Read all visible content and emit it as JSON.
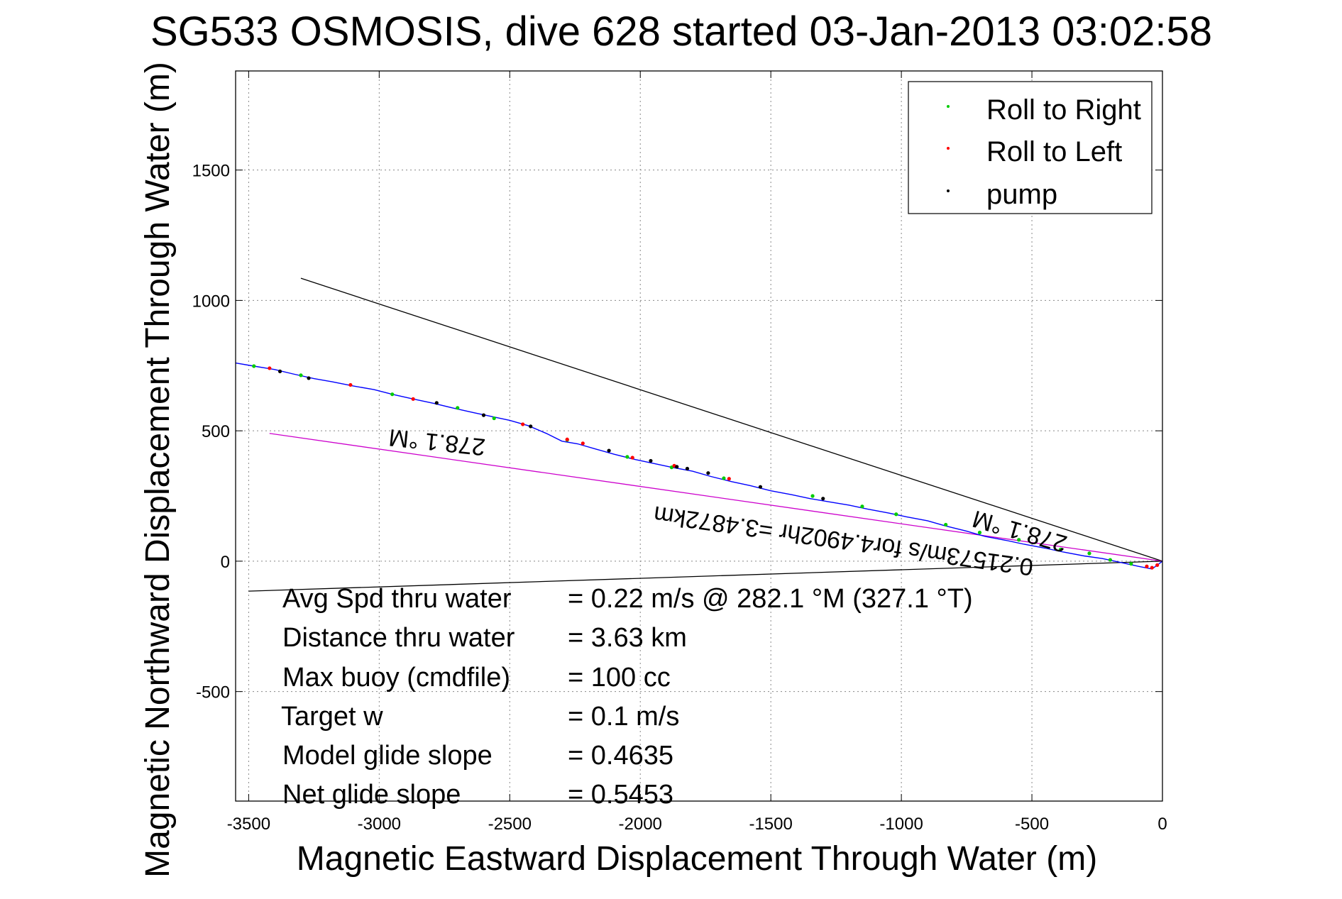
{
  "chart_data": {
    "type": "line",
    "title": "SG533 OSMOSIS, dive 628 started 03-Jan-2013 03:02:58",
    "xlabel": "Magnetic Eastward Displacement Through Water (m)",
    "ylabel": "Magnetic Northward Displacement Through Water (m)",
    "xlim": [
      -3550,
      0
    ],
    "ylim": [
      -920,
      1880
    ],
    "x_ticks": [
      -3500,
      -3000,
      -2500,
      -2000,
      -1500,
      -1000,
      -500,
      0
    ],
    "y_ticks": [
      -500,
      0,
      500,
      1000,
      1500
    ],
    "grid": true,
    "legend_position": "top-right",
    "legend": [
      {
        "label": "Roll to Right",
        "color": "#00cc00"
      },
      {
        "label": "Roll to Left",
        "color": "#ff0000"
      },
      {
        "label": "pump",
        "color": "#000000"
      }
    ],
    "track": {
      "name": "track",
      "color": "#0000ff",
      "x": [
        -3550,
        -3480,
        -3400,
        -3330,
        -3250,
        -3180,
        -3100,
        -3020,
        -2950,
        -2870,
        -2790,
        -2720,
        -2640,
        -2570,
        -2500,
        -2430,
        -2360,
        -2300,
        -2240,
        -2170,
        -2100,
        -2020,
        -1950,
        -1880,
        -1800,
        -1730,
        -1650,
        -1580,
        -1500,
        -1420,
        -1350,
        -1280,
        -1200,
        -1130,
        -1050,
        -980,
        -900,
        -830,
        -750,
        -680,
        -600,
        -530,
        -450,
        -380,
        -300,
        -230,
        -160,
        -90,
        -40,
        0
      ],
      "y": [
        760,
        748,
        735,
        718,
        700,
        688,
        672,
        658,
        640,
        622,
        605,
        588,
        570,
        555,
        540,
        520,
        490,
        460,
        450,
        430,
        410,
        390,
        375,
        360,
        345,
        325,
        305,
        290,
        270,
        255,
        240,
        228,
        215,
        200,
        185,
        170,
        155,
        135,
        115,
        95,
        80,
        65,
        50,
        35,
        20,
        10,
        -5,
        -20,
        -30,
        0
      ]
    },
    "roll_right_points": {
      "x": [
        -3480,
        -3300,
        -2950,
        -2700,
        -2560,
        -2280,
        -2050,
        -1880,
        -1680,
        -1340,
        -1150,
        -1020,
        -830,
        -700,
        -550,
        -390,
        -280,
        -200,
        -120
      ],
      "y": [
        748,
        713,
        640,
        588,
        548,
        465,
        400,
        360,
        318,
        250,
        210,
        180,
        140,
        110,
        82,
        45,
        30,
        5,
        -10
      ]
    },
    "roll_left_points": {
      "x": [
        -3420,
        -3110,
        -2870,
        -2450,
        -2280,
        -2220,
        -2030,
        -1870,
        -1660,
        -60,
        -40,
        -20
      ],
      "y": [
        740,
        676,
        622,
        525,
        467,
        452,
        397,
        366,
        316,
        -20,
        -25,
        -15
      ]
    },
    "pump_points": {
      "x": [
        -3380,
        -3270,
        -2780,
        -2600,
        -2420,
        -2120,
        -1960,
        -1860,
        -1820,
        -1740,
        -1540,
        -1300
      ],
      "y": [
        728,
        702,
        607,
        560,
        517,
        424,
        385,
        362,
        355,
        338,
        285,
        240
      ]
    },
    "reference_lines": [
      {
        "color": "#000000",
        "x": [
          -3300,
          0
        ],
        "y": [
          1085,
          0
        ]
      },
      {
        "color": "#000000",
        "x": [
          -3500,
          0
        ],
        "y": [
          -115,
          0
        ]
      },
      {
        "color": "#cc00cc",
        "x": [
          -3420,
          0
        ],
        "y": [
          490,
          0
        ]
      }
    ],
    "annotations": {
      "heading_label_1": "278.1 °M",
      "heading_label_2": "278.1 °M",
      "speed_label": "0.21573m/s for4.4902hr =3.4872km"
    },
    "stats": [
      {
        "label": "Avg Spd thru water",
        "value": "=  0.22 m/s @ 282.1 °M (327.1 °T)"
      },
      {
        "label": "Distance thru water",
        "value": "=  3.63 km"
      },
      {
        "label": "Max buoy (cmdfile)",
        "value": "= 100 cc"
      },
      {
        "label": "Target w",
        "value": "= 0.1 m/s"
      },
      {
        "label": "Model glide slope",
        "value": "= 0.4635"
      },
      {
        "label": "Net glide slope",
        "value": "= 0.5453"
      }
    ]
  }
}
